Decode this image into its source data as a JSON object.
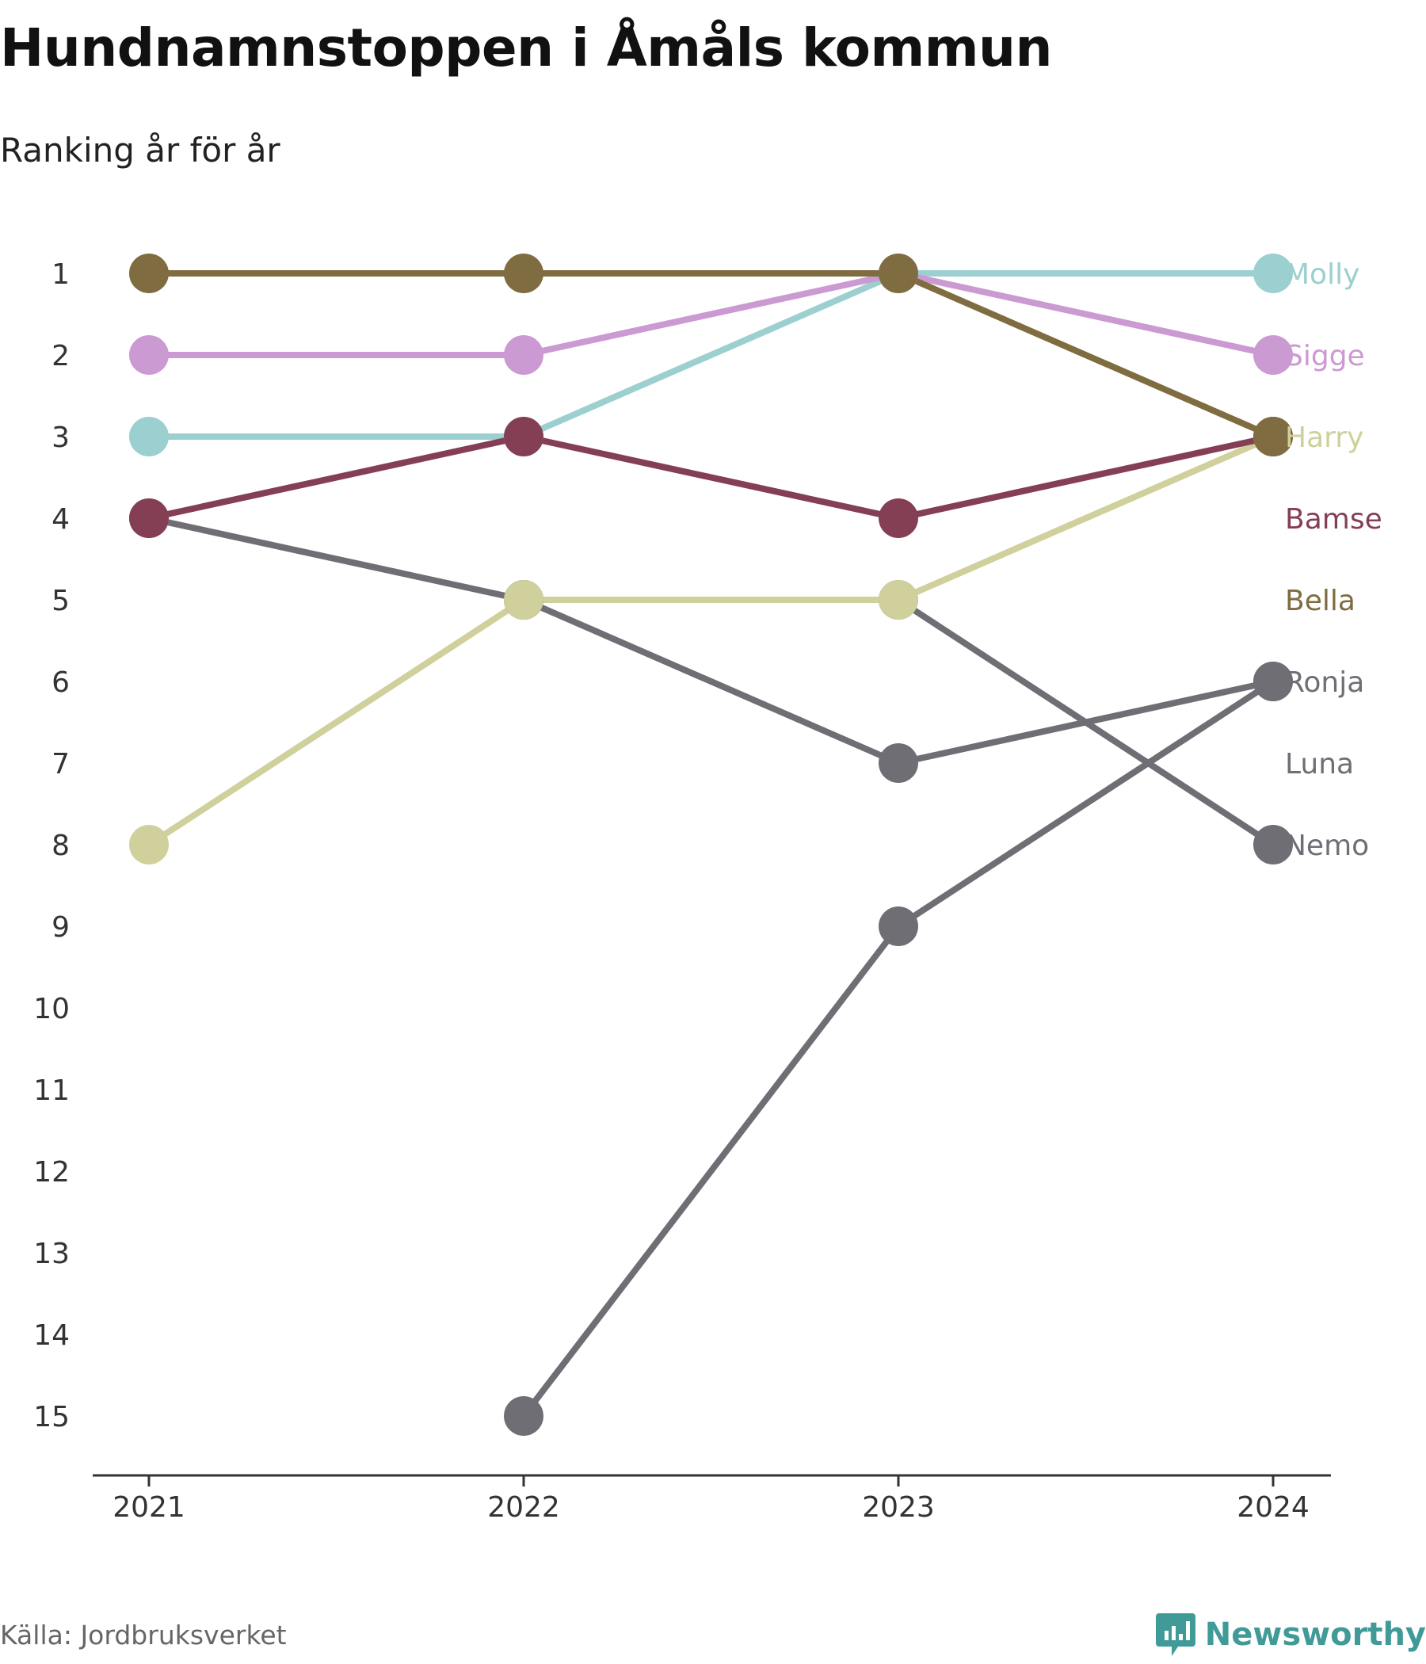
{
  "title": "Hundnamnstoppen i Åmåls kommun",
  "subtitle": "Ranking år för år",
  "source": "Källa: Jordbruksverket",
  "brand": {
    "name": "Newsworthy",
    "icon": "newsworthy-logo-icon",
    "color": "#3f9a98"
  },
  "chart_data": {
    "type": "line",
    "variant": "bump",
    "x": [
      "2021",
      "2022",
      "2023",
      "2024"
    ],
    "ylim": [
      1,
      15
    ],
    "y_reversed": true,
    "y_ticks": [
      "1",
      "2",
      "3",
      "4",
      "5",
      "6",
      "7",
      "8",
      "9",
      "10",
      "11",
      "12",
      "13",
      "14",
      "15"
    ],
    "grid": false,
    "series": [
      {
        "name": "Molly",
        "color": "#9ccfd0",
        "values": [
          3,
          3,
          1,
          1
        ]
      },
      {
        "name": "Sigge",
        "color": "#cc9ad2",
        "values": [
          2,
          2,
          1,
          2
        ]
      },
      {
        "name": "Harry",
        "color": "#cfd09b",
        "values": [
          8,
          5,
          5,
          3
        ]
      },
      {
        "name": "Bamse",
        "color": "#843f54",
        "values": [
          4,
          3,
          4,
          3
        ]
      },
      {
        "name": "Bella",
        "color": "#7f6c40",
        "values": [
          1,
          1,
          1,
          3
        ]
      },
      {
        "name": "Ronja",
        "color": "#6f6e75",
        "values": [
          null,
          15,
          9,
          6
        ]
      },
      {
        "name": "Luna",
        "color": "#6f6e75",
        "values": [
          4,
          5,
          7,
          6
        ]
      },
      {
        "name": "Nemo",
        "color": "#6f6e75",
        "values": [
          null,
          5,
          5,
          8
        ]
      }
    ]
  }
}
